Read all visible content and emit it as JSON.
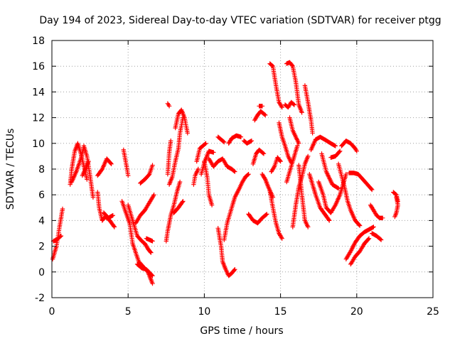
{
  "chart_data": {
    "type": "scatter",
    "title": "Day 194 of 2023, Sidereal Day-to-day VTEC variation (SDTVAR) for receiver ptgg",
    "xlabel": "GPS time / hours",
    "ylabel": "SDTVAR / TECUs",
    "xlim": [
      0,
      25
    ],
    "ylim": [
      -2,
      18
    ],
    "xticks": [
      "0",
      "5",
      "10",
      "15",
      "20",
      "25"
    ],
    "yticks": [
      "-2",
      "0",
      "2",
      "4",
      "6",
      "8",
      "10",
      "12",
      "14",
      "16",
      "18"
    ],
    "grid": true,
    "marker": "plus",
    "color": "#ff0000",
    "tracks": [
      [
        [
          0.05,
          1.0
        ],
        [
          0.3,
          2.0
        ],
        [
          0.5,
          3.5
        ],
        [
          0.7,
          4.9
        ]
      ],
      [
        [
          0.1,
          2.4
        ],
        [
          0.3,
          2.5
        ],
        [
          0.6,
          2.8
        ]
      ],
      [
        [
          1.2,
          6.8
        ],
        [
          1.3,
          8.0
        ],
        [
          1.5,
          9.4
        ],
        [
          1.7,
          10.0
        ],
        [
          1.9,
          9.2
        ],
        [
          2.1,
          8.2
        ],
        [
          2.3,
          7.2
        ]
      ],
      [
        [
          1.3,
          7.0
        ],
        [
          1.6,
          7.8
        ],
        [
          1.9,
          8.8
        ],
        [
          2.1,
          9.8
        ],
        [
          2.3,
          9.0
        ],
        [
          2.5,
          7.5
        ],
        [
          2.7,
          5.8
        ]
      ],
      [
        [
          2.0,
          7.5
        ],
        [
          2.2,
          8.0
        ],
        [
          2.4,
          8.6
        ]
      ],
      [
        [
          3.0,
          7.5
        ],
        [
          3.3,
          8.0
        ],
        [
          3.6,
          8.8
        ],
        [
          3.9,
          8.4
        ]
      ],
      [
        [
          3.0,
          6.2
        ],
        [
          3.1,
          5.0
        ],
        [
          3.3,
          4.0
        ],
        [
          3.5,
          4.3
        ],
        [
          3.8,
          4.0
        ],
        [
          4.1,
          3.5
        ]
      ],
      [
        [
          3.4,
          4.6
        ],
        [
          3.7,
          4.2
        ],
        [
          4.0,
          4.4
        ]
      ],
      [
        [
          4.7,
          9.5
        ],
        [
          4.9,
          8.2
        ],
        [
          5.0,
          7.5
        ]
      ],
      [
        [
          4.6,
          5.5
        ],
        [
          4.8,
          4.8
        ],
        [
          5.1,
          3.8
        ],
        [
          5.3,
          2.2
        ],
        [
          5.5,
          1.5
        ],
        [
          5.7,
          0.8
        ],
        [
          6.0,
          0.4
        ],
        [
          6.3,
          0.0
        ],
        [
          6.6,
          -0.9
        ]
      ],
      [
        [
          5.0,
          5.2
        ],
        [
          5.3,
          4.0
        ],
        [
          5.6,
          2.8
        ],
        [
          5.9,
          2.4
        ],
        [
          6.1,
          2.2
        ],
        [
          6.3,
          1.8
        ],
        [
          6.5,
          1.5
        ]
      ],
      [
        [
          5.5,
          3.8
        ],
        [
          5.8,
          4.4
        ],
        [
          6.1,
          4.8
        ],
        [
          6.4,
          5.4
        ],
        [
          6.7,
          6.0
        ]
      ],
      [
        [
          5.6,
          0.6
        ],
        [
          5.9,
          0.3
        ],
        [
          6.2,
          0.2
        ],
        [
          6.6,
          -0.3
        ]
      ],
      [
        [
          5.8,
          6.9
        ],
        [
          6.1,
          7.2
        ],
        [
          6.4,
          7.6
        ],
        [
          6.6,
          8.3
        ]
      ],
      [
        [
          6.2,
          2.6
        ],
        [
          6.4,
          2.5
        ],
        [
          6.6,
          2.4
        ]
      ],
      [
        [
          7.5,
          2.4
        ],
        [
          7.6,
          3.2
        ],
        [
          7.7,
          3.8
        ],
        [
          7.8,
          4.4
        ],
        [
          8.0,
          5.2
        ],
        [
          8.2,
          6.2
        ],
        [
          8.4,
          7.0
        ]
      ],
      [
        [
          7.7,
          6.8
        ],
        [
          7.9,
          7.4
        ],
        [
          8.1,
          8.6
        ],
        [
          8.3,
          9.6
        ],
        [
          8.4,
          10.8
        ],
        [
          8.6,
          12.0
        ]
      ],
      [
        [
          8.1,
          11.2
        ],
        [
          8.3,
          12.3
        ],
        [
          8.5,
          12.6
        ],
        [
          8.7,
          12.0
        ],
        [
          8.9,
          10.8
        ]
      ],
      [
        [
          7.6,
          7.6
        ],
        [
          7.7,
          9.3
        ],
        [
          7.8,
          10.2
        ]
      ],
      [
        [
          8.0,
          4.6
        ],
        [
          8.3,
          5.0
        ],
        [
          8.6,
          5.5
        ]
      ],
      [
        [
          7.6,
          13.1
        ],
        [
          7.7,
          12.9
        ]
      ],
      [
        [
          9.3,
          6.8
        ],
        [
          9.4,
          7.5
        ],
        [
          9.6,
          8.0
        ]
      ],
      [
        [
          9.5,
          8.6
        ],
        [
          9.7,
          9.6
        ],
        [
          9.9,
          9.8
        ],
        [
          10.1,
          10.0
        ]
      ],
      [
        [
          9.8,
          7.6
        ],
        [
          10.0,
          8.5
        ],
        [
          10.3,
          9.4
        ],
        [
          10.6,
          9.3
        ]
      ],
      [
        [
          10.0,
          8.6
        ],
        [
          10.2,
          7.3
        ],
        [
          10.3,
          6.0
        ],
        [
          10.5,
          5.2
        ]
      ],
      [
        [
          10.3,
          8.8
        ],
        [
          10.6,
          8.2
        ],
        [
          10.9,
          8.6
        ],
        [
          11.2,
          8.8
        ],
        [
          11.5,
          8.2
        ],
        [
          11.8,
          8.0
        ],
        [
          12.0,
          7.8
        ]
      ],
      [
        [
          11.3,
          2.5
        ],
        [
          11.5,
          3.8
        ],
        [
          11.8,
          5.0
        ],
        [
          12.0,
          5.8
        ],
        [
          12.3,
          6.5
        ],
        [
          12.5,
          7.0
        ],
        [
          12.7,
          7.4
        ],
        [
          12.9,
          7.6
        ]
      ],
      [
        [
          10.9,
          3.4
        ],
        [
          11.1,
          2.0
        ],
        [
          11.2,
          0.8
        ],
        [
          11.4,
          0.2
        ],
        [
          11.6,
          -0.3
        ],
        [
          11.8,
          -0.1
        ],
        [
          12.0,
          0.2
        ]
      ],
      [
        [
          11.6,
          10.0
        ],
        [
          11.8,
          10.4
        ],
        [
          12.1,
          10.6
        ],
        [
          12.4,
          10.5
        ]
      ],
      [
        [
          10.9,
          10.5
        ],
        [
          11.1,
          10.3
        ],
        [
          11.3,
          10.1
        ]
      ],
      [
        [
          12.6,
          10.2
        ],
        [
          12.8,
          10.0
        ],
        [
          13.1,
          10.2
        ]
      ],
      [
        [
          12.9,
          4.5
        ],
        [
          13.2,
          4.0
        ],
        [
          13.5,
          3.8
        ],
        [
          13.8,
          4.2
        ],
        [
          14.1,
          4.5
        ]
      ],
      [
        [
          13.2,
          8.4
        ],
        [
          13.4,
          9.2
        ],
        [
          13.6,
          9.5
        ],
        [
          13.9,
          9.2
        ]
      ],
      [
        [
          13.8,
          7.6
        ],
        [
          14.0,
          7.2
        ],
        [
          14.2,
          6.6
        ],
        [
          14.5,
          5.8
        ]
      ],
      [
        [
          13.3,
          11.8
        ],
        [
          13.5,
          12.2
        ],
        [
          13.7,
          12.5
        ],
        [
          14.0,
          12.2
        ]
      ],
      [
        [
          13.6,
          12.9
        ],
        [
          13.8,
          12.9
        ]
      ],
      [
        [
          14.3,
          6.3
        ],
        [
          14.5,
          5.0
        ],
        [
          14.7,
          3.8
        ],
        [
          14.9,
          3.0
        ],
        [
          15.1,
          2.6
        ]
      ],
      [
        [
          14.4,
          7.8
        ],
        [
          14.6,
          8.2
        ],
        [
          14.8,
          8.9
        ],
        [
          15.0,
          8.6
        ]
      ],
      [
        [
          14.3,
          16.2
        ],
        [
          14.5,
          16.0
        ],
        [
          14.7,
          14.5
        ],
        [
          14.9,
          13.2
        ],
        [
          15.1,
          12.8
        ]
      ],
      [
        [
          14.9,
          11.6
        ],
        [
          15.1,
          10.5
        ],
        [
          15.3,
          9.8
        ],
        [
          15.5,
          9.0
        ],
        [
          15.7,
          8.5
        ]
      ],
      [
        [
          15.3,
          13.0
        ],
        [
          15.5,
          12.8
        ],
        [
          15.7,
          13.2
        ],
        [
          15.9,
          13.0
        ]
      ],
      [
        [
          15.4,
          16.2
        ],
        [
          15.6,
          16.3
        ],
        [
          15.8,
          16.0
        ],
        [
          16.0,
          14.8
        ],
        [
          16.2,
          13.0
        ],
        [
          16.4,
          12.4
        ]
      ],
      [
        [
          15.6,
          12.0
        ],
        [
          15.8,
          11.0
        ],
        [
          16.0,
          10.5
        ],
        [
          16.2,
          10.0
        ]
      ],
      [
        [
          15.4,
          7.0
        ],
        [
          15.7,
          8.2
        ],
        [
          15.9,
          9.0
        ],
        [
          16.1,
          9.8
        ]
      ],
      [
        [
          15.8,
          3.5
        ],
        [
          16.0,
          5.2
        ],
        [
          16.2,
          6.6
        ],
        [
          16.4,
          7.4
        ],
        [
          16.6,
          8.4
        ],
        [
          16.8,
          9.0
        ]
      ],
      [
        [
          16.2,
          8.3
        ],
        [
          16.4,
          6.0
        ],
        [
          16.6,
          4.0
        ],
        [
          16.8,
          3.5
        ]
      ],
      [
        [
          16.6,
          14.5
        ],
        [
          16.8,
          13.2
        ],
        [
          17.0,
          11.8
        ],
        [
          17.1,
          10.8
        ]
      ],
      [
        [
          16.9,
          7.6
        ],
        [
          17.1,
          6.8
        ],
        [
          17.3,
          6.0
        ],
        [
          17.6,
          5.0
        ],
        [
          17.9,
          4.5
        ],
        [
          18.2,
          4.0
        ]
      ],
      [
        [
          17.0,
          9.5
        ],
        [
          17.3,
          10.3
        ],
        [
          17.6,
          10.5
        ],
        [
          17.9,
          10.3
        ],
        [
          18.3,
          10.0
        ],
        [
          18.6,
          9.8
        ]
      ],
      [
        [
          17.5,
          7.0
        ],
        [
          17.8,
          6.0
        ],
        [
          18.0,
          5.0
        ],
        [
          18.3,
          4.6
        ],
        [
          18.6,
          5.2
        ],
        [
          18.9,
          6.0
        ],
        [
          19.1,
          6.8
        ],
        [
          19.3,
          7.6
        ]
      ],
      [
        [
          18.3,
          8.9
        ],
        [
          18.6,
          9.0
        ],
        [
          18.9,
          9.4
        ]
      ],
      [
        [
          17.7,
          9.2
        ],
        [
          18.0,
          7.8
        ],
        [
          18.4,
          6.8
        ],
        [
          18.8,
          6.5
        ]
      ],
      [
        [
          19.0,
          9.8
        ],
        [
          19.3,
          10.2
        ],
        [
          19.6,
          10.0
        ],
        [
          19.9,
          9.6
        ],
        [
          20.0,
          9.4
        ]
      ],
      [
        [
          19.5,
          7.7
        ],
        [
          19.8,
          7.7
        ],
        [
          20.1,
          7.6
        ],
        [
          20.4,
          7.2
        ],
        [
          20.7,
          6.8
        ],
        [
          21.0,
          6.4
        ]
      ],
      [
        [
          18.8,
          8.4
        ],
        [
          19.0,
          7.5
        ],
        [
          19.2,
          6.6
        ],
        [
          19.4,
          5.5
        ],
        [
          19.6,
          4.8
        ],
        [
          19.9,
          4.0
        ],
        [
          20.2,
          3.6
        ]
      ],
      [
        [
          19.3,
          1.0
        ],
        [
          19.6,
          1.6
        ],
        [
          19.9,
          2.3
        ],
        [
          20.2,
          2.8
        ],
        [
          20.5,
          3.1
        ],
        [
          20.8,
          3.3
        ],
        [
          21.1,
          3.5
        ]
      ],
      [
        [
          19.6,
          0.6
        ],
        [
          19.9,
          1.2
        ],
        [
          20.2,
          1.6
        ],
        [
          20.5,
          2.2
        ],
        [
          20.8,
          2.6
        ]
      ],
      [
        [
          20.9,
          5.2
        ],
        [
          21.1,
          4.8
        ],
        [
          21.3,
          4.4
        ],
        [
          21.5,
          4.2
        ],
        [
          21.7,
          4.2
        ]
      ],
      [
        [
          21.0,
          3.0
        ],
        [
          21.3,
          2.8
        ],
        [
          21.6,
          2.5
        ]
      ],
      [
        [
          22.5,
          4.3
        ],
        [
          22.6,
          4.6
        ],
        [
          22.7,
          5.2
        ],
        [
          22.6,
          5.8
        ]
      ],
      [
        [
          22.4,
          6.2
        ],
        [
          22.6,
          6.0
        ],
        [
          22.7,
          5.5
        ]
      ]
    ]
  }
}
